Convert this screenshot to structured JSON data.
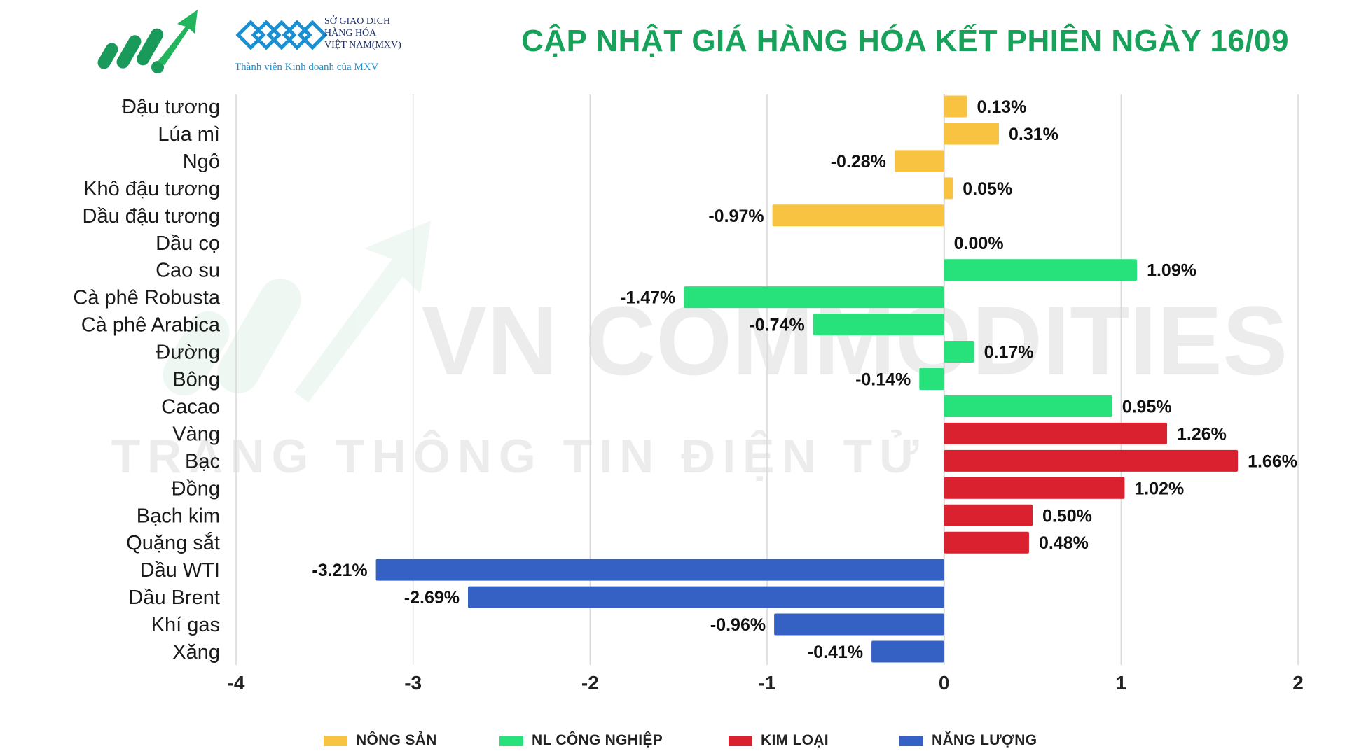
{
  "header": {
    "title": "CẬP NHẬT GIÁ HÀNG HÓA KẾT PHIÊN NGÀY 16/09",
    "brand_line1": "SỞ GIAO DỊCH",
    "brand_line2": "HÀNG HÓA",
    "brand_line3": "VIỆT NAM(MXV)",
    "brand_tm": "™",
    "brand_sub": "Thành viên Kinh doanh của MXV"
  },
  "watermark": {
    "line1": "VN COMMODITIES",
    "line2": "TRANG THÔNG TIN ĐIỆN TỬ"
  },
  "colors": {
    "nong_san": "#f7c341",
    "nl_cong_nghiep": "#27e27a",
    "kim_loai": "#d9212f",
    "nang_luong": "#3561c4",
    "title": "#18a15a"
  },
  "chart_data": {
    "type": "bar",
    "orientation": "horizontal",
    "xlim": [
      -4,
      2
    ],
    "x_ticks": [
      -4,
      -3,
      -2,
      -1,
      0,
      1,
      2
    ],
    "grid": true,
    "legend_position": "bottom",
    "series": [
      {
        "name": "NÔNG SẢN",
        "color_key": "nong_san"
      },
      {
        "name": "NL CÔNG NGHIỆP",
        "color_key": "nl_cong_nghiep"
      },
      {
        "name": "KIM LOẠI",
        "color_key": "kim_loai"
      },
      {
        "name": "NĂNG LƯỢNG",
        "color_key": "nang_luong"
      }
    ],
    "categories": [
      {
        "label": "Đậu tương",
        "value": 0.13,
        "value_label": "0.13%",
        "group": 0
      },
      {
        "label": "Lúa mì",
        "value": 0.31,
        "value_label": "0.31%",
        "group": 0
      },
      {
        "label": "Ngô",
        "value": -0.28,
        "value_label": "-0.28%",
        "group": 0
      },
      {
        "label": "Khô đậu tương",
        "value": 0.05,
        "value_label": "0.05%",
        "group": 0
      },
      {
        "label": "Dầu đậu tương",
        "value": -0.97,
        "value_label": "-0.97%",
        "group": 0
      },
      {
        "label": "Dầu cọ",
        "value": 0.0,
        "value_label": "0.00%",
        "group": 0
      },
      {
        "label": "Cao su",
        "value": 1.09,
        "value_label": "1.09%",
        "group": 1
      },
      {
        "label": "Cà phê Robusta",
        "value": -1.47,
        "value_label": "-1.47%",
        "group": 1
      },
      {
        "label": "Cà phê Arabica",
        "value": -0.74,
        "value_label": "-0.74%",
        "group": 1
      },
      {
        "label": "Đường",
        "value": 0.17,
        "value_label": "0.17%",
        "group": 1
      },
      {
        "label": "Bông",
        "value": -0.14,
        "value_label": "-0.14%",
        "group": 1
      },
      {
        "label": "Cacao",
        "value": 0.95,
        "value_label": "0.95%",
        "group": 1
      },
      {
        "label": "Vàng",
        "value": 1.26,
        "value_label": "1.26%",
        "group": 2
      },
      {
        "label": "Bạc",
        "value": 1.66,
        "value_label": "1.66%",
        "group": 2
      },
      {
        "label": "Đồng",
        "value": 1.02,
        "value_label": "1.02%",
        "group": 2
      },
      {
        "label": "Bạch kim",
        "value": 0.5,
        "value_label": "0.50%",
        "group": 2
      },
      {
        "label": "Quặng sắt",
        "value": 0.48,
        "value_label": "0.48%",
        "group": 2
      },
      {
        "label": "Dầu WTI",
        "value": -3.21,
        "value_label": "-3.21%",
        "group": 3
      },
      {
        "label": "Dầu Brent",
        "value": -2.69,
        "value_label": "-2.69%",
        "group": 3
      },
      {
        "label": "Khí gas",
        "value": -0.96,
        "value_label": "-0.96%",
        "group": 3
      },
      {
        "label": "Xăng",
        "value": -0.41,
        "value_label": "-0.41%",
        "group": 3
      }
    ]
  }
}
